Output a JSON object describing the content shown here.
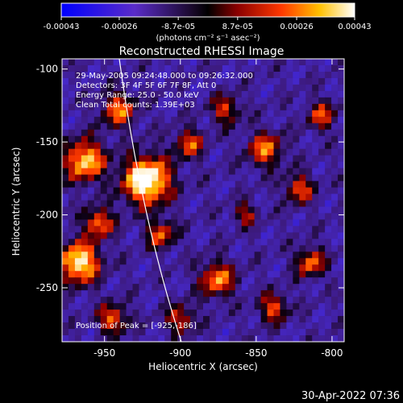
{
  "chart_data": {
    "type": "heatmap",
    "title": "Reconstructed RHESSI Image",
    "xlabel": "Heliocentric X (arcsec)",
    "ylabel": "Heliocentric Y (arcsec)",
    "xlim": [
      -978,
      -792
    ],
    "ylim": [
      -287,
      -93
    ],
    "x_ticks": [
      "-950",
      "-900",
      "-850",
      "-800"
    ],
    "x_tick_values": [
      -950,
      -900,
      -850,
      -800
    ],
    "y_ticks": [
      "-100",
      "-150",
      "-200",
      "-250"
    ],
    "y_tick_values": [
      -100,
      -150,
      -200,
      -250
    ],
    "colorbar": {
      "ticks": [
        "-0.00043",
        "-0.00026",
        "-8.7e-05",
        "8.7e-05",
        "0.00026",
        "0.00043"
      ],
      "tick_values": [
        -0.00043,
        -0.00026,
        -8.7e-05,
        8.7e-05,
        0.00026,
        0.00043
      ],
      "range": [
        -0.00043,
        0.00043
      ],
      "units": "(photons cm⁻² s⁻¹ asec⁻²)"
    },
    "annotations": [
      "29-May-2005 09:24:48.000 to 09:26:32.000",
      "Detectors: 3F 4F 5F 6F 7F 8F, Att 0",
      "Energy Range: 25.0 - 50.0 keV",
      "Clean     Total counts: 1.39E+03"
    ],
    "peak_label": "Position of Peak = [-925,-186]",
    "peak": [
      -925,
      -186
    ],
    "colormap": "blue-purple-black-red-yellow-white"
  },
  "footer": {
    "timestamp": "30-Apr-2022 07:36"
  }
}
